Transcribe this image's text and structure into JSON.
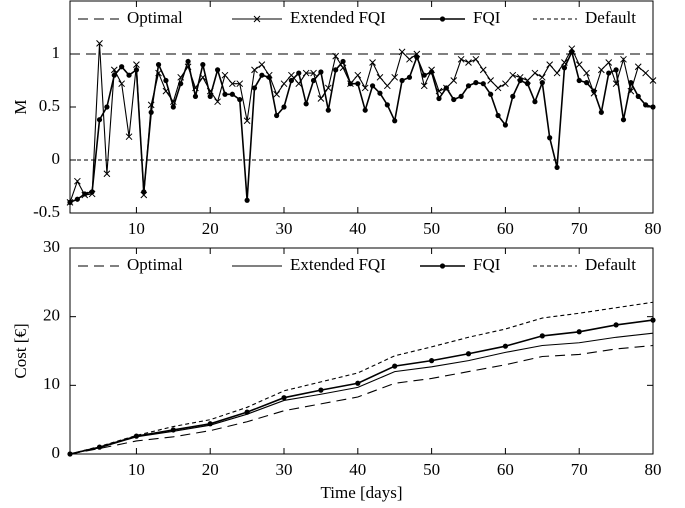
{
  "chart_data": [
    {
      "type": "line",
      "ylabel": "M",
      "x": [
        1,
        2,
        3,
        4,
        5,
        6,
        7,
        8,
        9,
        10,
        11,
        12,
        13,
        14,
        15,
        16,
        17,
        18,
        19,
        20,
        21,
        22,
        23,
        24,
        25,
        26,
        27,
        28,
        29,
        30,
        31,
        32,
        33,
        34,
        35,
        36,
        37,
        38,
        39,
        40,
        41,
        42,
        43,
        44,
        45,
        46,
        47,
        48,
        49,
        50,
        51,
        52,
        53,
        54,
        55,
        56,
        57,
        58,
        59,
        60,
        61,
        62,
        63,
        64,
        65,
        66,
        67,
        68,
        69,
        70,
        71,
        72,
        73,
        74,
        75,
        76,
        77,
        78,
        79,
        80
      ],
      "xlim": [
        1,
        80
      ],
      "xticks": [
        10,
        20,
        30,
        40,
        50,
        60,
        70,
        80
      ],
      "ylim": [
        -0.5,
        1.5
      ],
      "yticks": [
        -0.5,
        0,
        0.5,
        1
      ],
      "legend": "top",
      "grid": false,
      "series": [
        {
          "name": "Optimal",
          "color": "#000000",
          "dash": "dashed",
          "marker": "none",
          "values": [
            1,
            1,
            1,
            1,
            1,
            1,
            1,
            1,
            1,
            1,
            1,
            1,
            1,
            1,
            1,
            1,
            1,
            1,
            1,
            1,
            1,
            1,
            1,
            1,
            1,
            1,
            1,
            1,
            1,
            1,
            1,
            1,
            1,
            1,
            1,
            1,
            1,
            1,
            1,
            1,
            1,
            1,
            1,
            1,
            1,
            1,
            1,
            1,
            1,
            1,
            1,
            1,
            1,
            1,
            1,
            1,
            1,
            1,
            1,
            1,
            1,
            1,
            1,
            1,
            1,
            1,
            1,
            1,
            1,
            1,
            1,
            1,
            1,
            1,
            1,
            1,
            1,
            1,
            1,
            1
          ]
        },
        {
          "name": "Extended FQI",
          "color": "#000000",
          "dash": "solid",
          "marker": "x",
          "values": [
            -0.4,
            -0.2,
            -0.33,
            -0.32,
            1.1,
            -0.13,
            0.85,
            0.72,
            0.22,
            0.9,
            -0.33,
            0.52,
            0.82,
            0.65,
            0.55,
            0.78,
            0.88,
            0.68,
            0.78,
            0.65,
            0.55,
            0.8,
            0.72,
            0.72,
            0.37,
            0.85,
            0.9,
            0.8,
            0.62,
            0.72,
            0.8,
            0.72,
            0.82,
            0.82,
            0.58,
            0.68,
            0.98,
            0.87,
            0.72,
            0.8,
            0.68,
            0.92,
            0.78,
            0.7,
            0.78,
            1.02,
            0.95,
            1.0,
            0.7,
            0.85,
            0.65,
            0.68,
            0.75,
            0.95,
            0.92,
            0.95,
            0.85,
            0.75,
            0.68,
            0.72,
            0.8,
            0.78,
            0.75,
            0.82,
            0.78,
            0.9,
            0.82,
            0.92,
            1.05,
            0.9,
            0.82,
            0.63,
            0.85,
            0.92,
            0.72,
            0.95,
            0.65,
            0.88,
            0.82,
            0.75
          ]
        },
        {
          "name": "FQI",
          "color": "#000000",
          "dash": "solid",
          "marker": "dot",
          "values": [
            -0.4,
            -0.37,
            -0.32,
            -0.3,
            0.38,
            0.5,
            0.8,
            0.88,
            0.8,
            0.85,
            -0.3,
            0.45,
            0.9,
            0.75,
            0.5,
            0.72,
            0.93,
            0.6,
            0.9,
            0.6,
            0.85,
            0.62,
            0.62,
            0.57,
            -0.38,
            0.68,
            0.8,
            0.78,
            0.42,
            0.5,
            0.75,
            0.82,
            0.53,
            0.75,
            0.83,
            0.47,
            0.85,
            0.93,
            0.72,
            0.72,
            0.47,
            0.7,
            0.63,
            0.52,
            0.37,
            0.75,
            0.78,
            0.97,
            0.8,
            0.83,
            0.58,
            0.68,
            0.57,
            0.6,
            0.7,
            0.73,
            0.72,
            0.62,
            0.42,
            0.33,
            0.6,
            0.75,
            0.72,
            0.55,
            0.73,
            0.21,
            -0.07,
            0.87,
            1.02,
            0.75,
            0.73,
            0.65,
            0.45,
            0.82,
            0.85,
            0.38,
            0.73,
            0.6,
            0.52,
            0.5
          ]
        },
        {
          "name": "Default",
          "color": "#000000",
          "dash": "dotted",
          "marker": "none",
          "values": [
            0,
            0,
            0,
            0,
            0,
            0,
            0,
            0,
            0,
            0,
            0,
            0,
            0,
            0,
            0,
            0,
            0,
            0,
            0,
            0,
            0,
            0,
            0,
            0,
            0,
            0,
            0,
            0,
            0,
            0,
            0,
            0,
            0,
            0,
            0,
            0,
            0,
            0,
            0,
            0,
            0,
            0,
            0,
            0,
            0,
            0,
            0,
            0,
            0,
            0,
            0,
            0,
            0,
            0,
            0,
            0,
            0,
            0,
            0,
            0,
            0,
            0,
            0,
            0,
            0,
            0,
            0,
            0,
            0,
            0,
            0,
            0,
            0,
            0,
            0,
            0,
            0,
            0,
            0,
            0
          ]
        }
      ]
    },
    {
      "type": "line",
      "ylabel": "Cost [€]",
      "xlabel": "Time [days]",
      "x": [
        1,
        5,
        10,
        15,
        20,
        25,
        30,
        35,
        40,
        45,
        50,
        55,
        60,
        65,
        70,
        75,
        80
      ],
      "xlim": [
        1,
        80
      ],
      "xticks": [
        10,
        20,
        30,
        40,
        50,
        60,
        70,
        80
      ],
      "ylim": [
        0,
        30
      ],
      "yticks": [
        0,
        10,
        20,
        30
      ],
      "legend": "top",
      "grid": false,
      "series": [
        {
          "name": "Optimal",
          "color": "#000000",
          "dash": "dashed",
          "marker": "none",
          "values": [
            0,
            0.8,
            1.9,
            2.5,
            3.4,
            4.7,
            6.3,
            7.3,
            8.3,
            10.3,
            11.0,
            12.0,
            13.0,
            14.2,
            14.5,
            15.3,
            15.8
          ]
        },
        {
          "name": "Extended FQI",
          "color": "#000000",
          "dash": "solid",
          "marker": "none",
          "values": [
            0,
            0.9,
            2.5,
            3.3,
            4.2,
            5.8,
            7.8,
            8.7,
            9.7,
            12.0,
            12.7,
            13.6,
            14.8,
            15.8,
            16.2,
            17.0,
            17.6
          ]
        },
        {
          "name": "FQI",
          "color": "#000000",
          "dash": "solid",
          "marker": "dot",
          "values": [
            0,
            1.0,
            2.6,
            3.5,
            4.4,
            6.1,
            8.2,
            9.3,
            10.3,
            12.8,
            13.6,
            14.6,
            15.7,
            17.2,
            17.8,
            18.8,
            19.5
          ]
        },
        {
          "name": "Default",
          "color": "#000000",
          "dash": "dotted",
          "marker": "none",
          "values": [
            0,
            1.1,
            2.7,
            4.0,
            5.0,
            6.8,
            9.2,
            10.5,
            11.8,
            14.3,
            15.6,
            17.0,
            18.2,
            19.8,
            20.5,
            21.3,
            22.1
          ]
        }
      ]
    }
  ]
}
